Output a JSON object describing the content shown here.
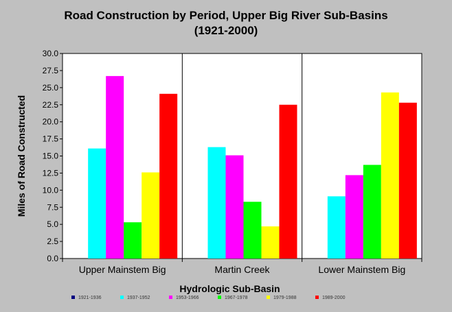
{
  "chart_data": {
    "type": "bar",
    "title_line1": "Road Construction by Period, Upper Big River Sub-Basins",
    "title_line2": "(1921-2000)",
    "xlabel": "Hydrologic Sub-Basin",
    "ylabel": "Miles of Road Constructed",
    "ylim": [
      0,
      30
    ],
    "yticks": [
      "0.0",
      "2.5",
      "5.0",
      "7.5",
      "10.0",
      "12.5",
      "15.0",
      "17.5",
      "20.0",
      "22.5",
      "25.0",
      "27.5",
      "30.0"
    ],
    "grid": false,
    "legend_position": "bottom",
    "categories": [
      "Upper Mainstem Big",
      "Martin Creek",
      "Lower Mainstem Big"
    ],
    "series": [
      {
        "name": "1921-1936",
        "color": "#000080",
        "values": [
          0,
          0,
          0
        ]
      },
      {
        "name": "1937-1952",
        "color": "#00ffff",
        "values": [
          16.1,
          16.3,
          9.1
        ]
      },
      {
        "name": "1953-1966",
        "color": "#ff00ff",
        "values": [
          26.7,
          15.1,
          12.2
        ]
      },
      {
        "name": "1967-1978",
        "color": "#00ff00",
        "values": [
          5.3,
          8.3,
          13.7
        ]
      },
      {
        "name": "1979-1988",
        "color": "#ffff00",
        "values": [
          12.6,
          4.7,
          24.3
        ]
      },
      {
        "name": "1989-2000",
        "color": "#ff0000",
        "values": [
          24.1,
          22.5,
          22.8
        ]
      }
    ]
  }
}
